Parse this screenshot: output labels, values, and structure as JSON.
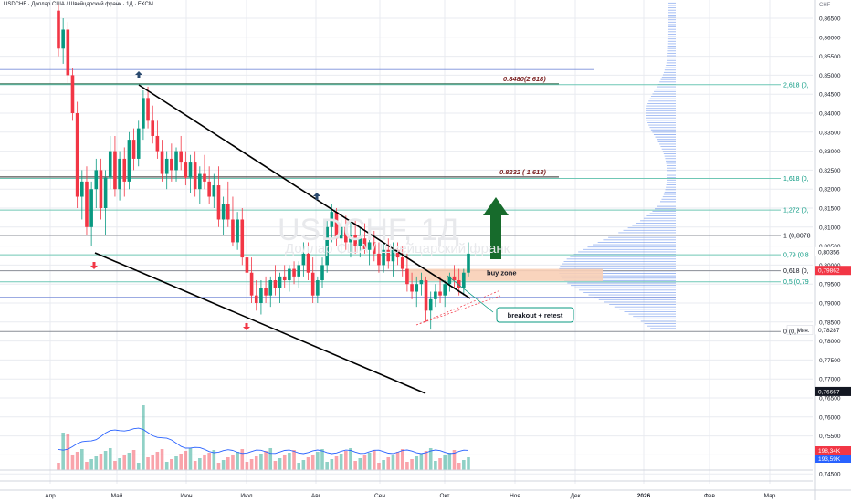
{
  "symbol_title": "USDCHF · Доллар США / Швейцарский франк · 1Д · FXCM",
  "watermark": "USDCHF, 1Д",
  "watermark_subtitle": "Доллар США / Швейцарский франк",
  "price_unit": "CHF",
  "colors": {
    "up": "#089981",
    "down": "#f23645",
    "grid": "#e9ebf0",
    "fib_line": "#6fc7b5",
    "hline_blue": "#7b8fd9",
    "vp_blue": "#4f7fe8",
    "buy_zone": "#f8cfb6",
    "arrow_green": "#176b2c",
    "annot_red": "#7a1f1f",
    "ma_line": "#2962ff"
  },
  "chart_data": {
    "type": "candlestick",
    "x_ticks": [
      "Апр",
      "Май",
      "Июн",
      "Июл",
      "Авг",
      "Сен",
      "Окт",
      "Ноя",
      "Дек",
      "2026",
      "Фев",
      "Мар"
    ],
    "y_ticks": [
      "0,86500",
      "0,86000",
      "0,85500",
      "0,85000",
      "0,84500",
      "0,84000",
      "0,83500",
      "0,83000",
      "0,82500",
      "0,82000",
      "0,81500",
      "0,81000",
      "0,80500",
      "0,80000",
      "0,79500",
      "0,79000",
      "0,78500",
      "0,78000",
      "0,77500",
      "0,77000",
      "0,76500",
      "0,76000",
      "0,75500",
      "0,75000",
      "0,74500"
    ],
    "ylim": [
      0.7425,
      0.868
    ],
    "current_price_label": "0,80356",
    "buy_zone_price_label": "0,79862",
    "low_price_label": "0,78287",
    "low_marker_label": "Мин.",
    "extra_price_label": "0,76667",
    "volume_labels": [
      "198,34K",
      "193,59K"
    ],
    "fib_levels": [
      {
        "label": "2,618 (0,",
        "price": 0.8475
      },
      {
        "label": "1,618 (0,",
        "price": 0.8228
      },
      {
        "label": "1,272 (0,",
        "price": 0.8145
      },
      {
        "label": "1 (0,8078",
        "price": 0.8078
      },
      {
        "label": "0,79 (0,8",
        "price": 0.8027
      },
      {
        "label": "0,618 (0,",
        "price": 0.7985
      },
      {
        "label": "0,5 (0,79",
        "price": 0.7956
      },
      {
        "label": "0 (0,7",
        "price": 0.7825
      }
    ],
    "annotations": {
      "target_1": "0.8480(2.618)",
      "target_2": "0.8232 ( 1.618)",
      "buy_zone": "buy zone",
      "breakout": "breakout + retest"
    },
    "series": [
      {
        "name": "USDCHF",
        "kind": "ohlc",
        "ohlc": [
          [
            0.867,
            0.869,
            0.855,
            0.857
          ],
          [
            0.857,
            0.865,
            0.853,
            0.862
          ],
          [
            0.862,
            0.864,
            0.848,
            0.85
          ],
          [
            0.85,
            0.852,
            0.838,
            0.84
          ],
          [
            0.84,
            0.843,
            0.815,
            0.818
          ],
          [
            0.818,
            0.825,
            0.812,
            0.822
          ],
          [
            0.822,
            0.826,
            0.808,
            0.81
          ],
          [
            0.81,
            0.822,
            0.805,
            0.82
          ],
          [
            0.82,
            0.828,
            0.815,
            0.825
          ],
          [
            0.825,
            0.828,
            0.812,
            0.815
          ],
          [
            0.815,
            0.825,
            0.808,
            0.823
          ],
          [
            0.823,
            0.834,
            0.82,
            0.83
          ],
          [
            0.83,
            0.834,
            0.818,
            0.82
          ],
          [
            0.82,
            0.83,
            0.817,
            0.828
          ],
          [
            0.828,
            0.831,
            0.818,
            0.822
          ],
          [
            0.822,
            0.835,
            0.82,
            0.833
          ],
          [
            0.833,
            0.836,
            0.825,
            0.828
          ],
          [
            0.828,
            0.838,
            0.826,
            0.836
          ],
          [
            0.836,
            0.846,
            0.833,
            0.844
          ],
          [
            0.844,
            0.847,
            0.836,
            0.838
          ],
          [
            0.838,
            0.842,
            0.832,
            0.834
          ],
          [
            0.834,
            0.838,
            0.828,
            0.83
          ],
          [
            0.83,
            0.833,
            0.822,
            0.824
          ],
          [
            0.824,
            0.83,
            0.82,
            0.828
          ],
          [
            0.828,
            0.832,
            0.822,
            0.825
          ],
          [
            0.825,
            0.831,
            0.822,
            0.83
          ],
          [
            0.83,
            0.834,
            0.825,
            0.827
          ],
          [
            0.827,
            0.83,
            0.821,
            0.823
          ],
          [
            0.823,
            0.829,
            0.819,
            0.827
          ],
          [
            0.827,
            0.83,
            0.818,
            0.82
          ],
          [
            0.82,
            0.826,
            0.816,
            0.824
          ],
          [
            0.824,
            0.829,
            0.82,
            0.822
          ],
          [
            0.822,
            0.826,
            0.816,
            0.818
          ],
          [
            0.818,
            0.824,
            0.815,
            0.821
          ],
          [
            0.821,
            0.826,
            0.81,
            0.812
          ],
          [
            0.812,
            0.818,
            0.808,
            0.816
          ],
          [
            0.816,
            0.822,
            0.81,
            0.812
          ],
          [
            0.812,
            0.818,
            0.805,
            0.806
          ],
          [
            0.806,
            0.814,
            0.804,
            0.812
          ],
          [
            0.812,
            0.815,
            0.8,
            0.802
          ],
          [
            0.802,
            0.806,
            0.796,
            0.798
          ],
          [
            0.798,
            0.802,
            0.79,
            0.792
          ],
          [
            0.792,
            0.796,
            0.788,
            0.79
          ],
          [
            0.79,
            0.796,
            0.787,
            0.794
          ],
          [
            0.794,
            0.797,
            0.79,
            0.792
          ],
          [
            0.792,
            0.797,
            0.789,
            0.796
          ],
          [
            0.796,
            0.8,
            0.792,
            0.794
          ],
          [
            0.794,
            0.798,
            0.79,
            0.797
          ],
          [
            0.797,
            0.8,
            0.794,
            0.796
          ],
          [
            0.796,
            0.8,
            0.793,
            0.799
          ],
          [
            0.799,
            0.801,
            0.795,
            0.797
          ],
          [
            0.797,
            0.801,
            0.794,
            0.8
          ],
          [
            0.8,
            0.806,
            0.797,
            0.803
          ],
          [
            0.803,
            0.806,
            0.796,
            0.798
          ],
          [
            0.798,
            0.802,
            0.79,
            0.792
          ],
          [
            0.792,
            0.797,
            0.79,
            0.796
          ],
          [
            0.796,
            0.802,
            0.794,
            0.8
          ],
          [
            0.8,
            0.812,
            0.798,
            0.81
          ],
          [
            0.81,
            0.816,
            0.806,
            0.814
          ],
          [
            0.814,
            0.815,
            0.805,
            0.807
          ],
          [
            0.807,
            0.812,
            0.803,
            0.81
          ],
          [
            0.81,
            0.813,
            0.804,
            0.806
          ],
          [
            0.806,
            0.812,
            0.802,
            0.808
          ],
          [
            0.808,
            0.812,
            0.803,
            0.805
          ],
          [
            0.805,
            0.81,
            0.802,
            0.807
          ],
          [
            0.807,
            0.811,
            0.803,
            0.804
          ],
          [
            0.804,
            0.808,
            0.8,
            0.806
          ],
          [
            0.806,
            0.809,
            0.801,
            0.803
          ],
          [
            0.803,
            0.806,
            0.798,
            0.8
          ],
          [
            0.8,
            0.806,
            0.798,
            0.804
          ],
          [
            0.804,
            0.807,
            0.799,
            0.801
          ],
          [
            0.801,
            0.806,
            0.797,
            0.804
          ],
          [
            0.804,
            0.806,
            0.8,
            0.802
          ],
          [
            0.802,
            0.805,
            0.797,
            0.799
          ],
          [
            0.799,
            0.803,
            0.793,
            0.795
          ],
          [
            0.795,
            0.798,
            0.791,
            0.793
          ],
          [
            0.793,
            0.797,
            0.789,
            0.795
          ],
          [
            0.795,
            0.798,
            0.792,
            0.796
          ],
          [
            0.796,
            0.797,
            0.785,
            0.788
          ],
          [
            0.788,
            0.793,
            0.783,
            0.791
          ],
          [
            0.791,
            0.795,
            0.789,
            0.793
          ],
          [
            0.793,
            0.797,
            0.79,
            0.792
          ],
          [
            0.792,
            0.796,
            0.789,
            0.795
          ],
          [
            0.795,
            0.798,
            0.793,
            0.797
          ],
          [
            0.797,
            0.8,
            0.794,
            0.796
          ],
          [
            0.796,
            0.799,
            0.792,
            0.794
          ],
          [
            0.794,
            0.799,
            0.792,
            0.798
          ],
          [
            0.798,
            0.806,
            0.797,
            0.803
          ]
        ]
      },
      {
        "name": "Volume",
        "kind": "volume"
      }
    ],
    "grid": true
  }
}
